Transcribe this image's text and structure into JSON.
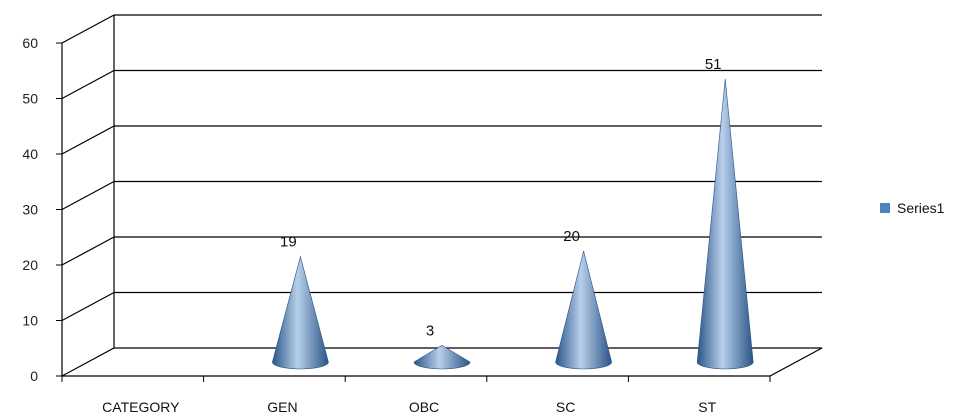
{
  "chart_data": {
    "type": "bar",
    "bar_shape": "cone-3d",
    "categories": [
      "CATEGORY",
      "GEN",
      "OBC",
      "SC",
      "ST"
    ],
    "series": [
      {
        "name": "Series1",
        "values": [
          null,
          19,
          3,
          20,
          51
        ]
      }
    ],
    "data_labels": [
      "",
      "19",
      "3",
      "20",
      "51"
    ],
    "yticks": [
      "0",
      "10",
      "20",
      "30",
      "40",
      "50",
      "60"
    ],
    "ylim": [
      0,
      60
    ],
    "grid": true,
    "legend": {
      "position": "right",
      "entries": [
        "Series1"
      ]
    },
    "colors": {
      "bar": "#4F81BD",
      "bar_dark": "#2B5487",
      "bar_light": "#B7CFEA",
      "grid": "#000000"
    }
  }
}
